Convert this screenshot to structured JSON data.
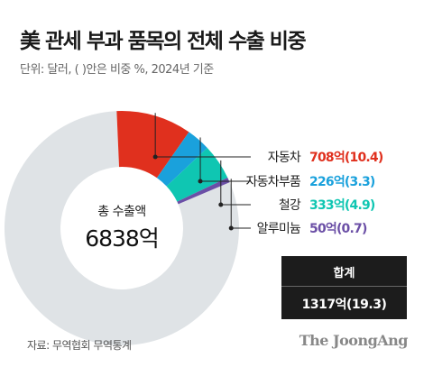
{
  "header": {
    "title": "美 관세 부과 품목의 전체 수출 비중",
    "subtitle": "단위: 달러, ( )안은 비중 %, 2024년 기준"
  },
  "chart_data": {
    "type": "pie",
    "style": "donut",
    "center_label": "총 수출액",
    "center_value": "6838억",
    "total_display": "6838억",
    "slices": [
      {
        "name": "자동차",
        "value_display": "708억(10.4)",
        "share": 10.4,
        "color": "#e0301e"
      },
      {
        "name": "자동차부품",
        "value_display": "226억(3.3)",
        "share": 3.3,
        "color": "#1aa1dc"
      },
      {
        "name": "철강",
        "value_display": "333억(4.9)",
        "share": 4.9,
        "color": "#0fc6b2"
      },
      {
        "name": "알루미늄",
        "value_display": "50억(0.7)",
        "share": 0.7,
        "color": "#6b4fa6"
      }
    ],
    "remainder_color": "#dfe3e6"
  },
  "summary": {
    "label": "합계",
    "value": "1317억(19.3)"
  },
  "footer": {
    "source": "자료: 무역협회 무역통계",
    "logo": "The JoongAng"
  }
}
